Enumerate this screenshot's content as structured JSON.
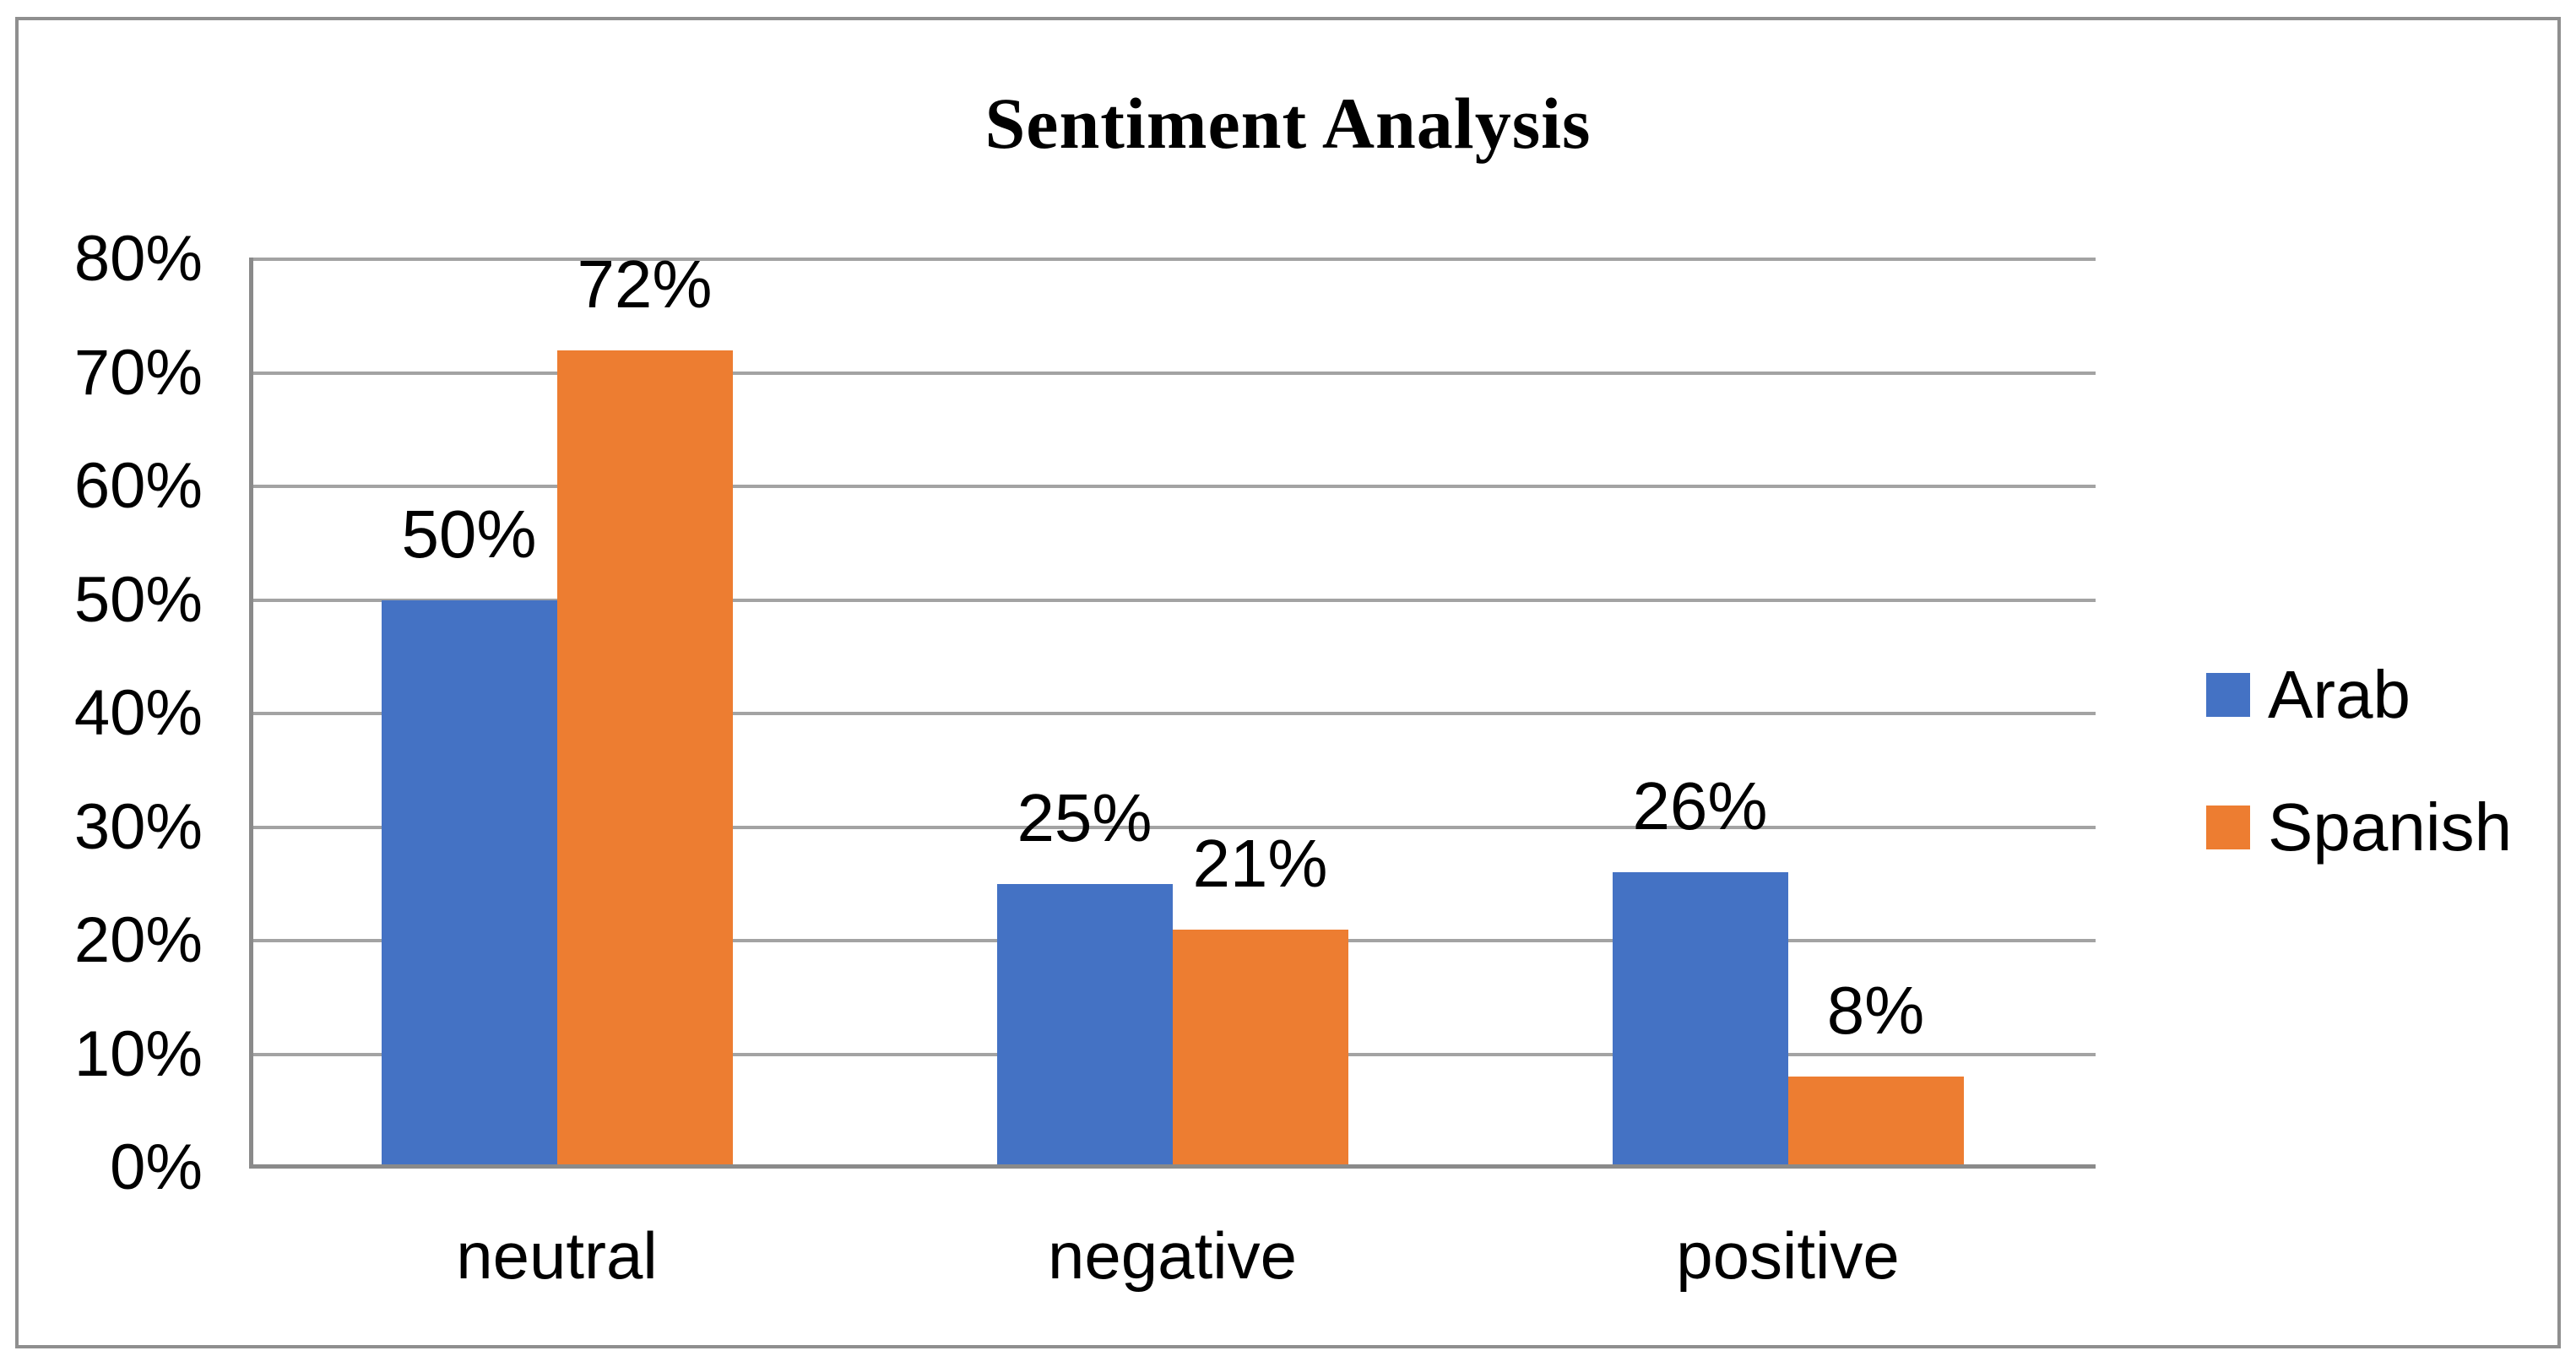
{
  "chart_data": {
    "type": "bar",
    "title": "Sentiment Analysis",
    "categories": [
      "neutral",
      "negative",
      "positive"
    ],
    "series": [
      {
        "name": "Arab",
        "color": "#4472C4",
        "values": [
          50,
          25,
          26
        ],
        "labels": [
          "50%",
          "25%",
          "26%"
        ]
      },
      {
        "name": "Spanish",
        "color": "#ED7D31",
        "values": [
          72,
          21,
          8
        ],
        "labels": [
          "72%",
          "21%",
          "8%"
        ]
      }
    ],
    "y_axis": {
      "min": 0,
      "max": 80,
      "tick_step": 10,
      "tick_labels": [
        "0%",
        "10%",
        "20%",
        "30%",
        "40%",
        "50%",
        "60%",
        "70%",
        "80%"
      ],
      "format": "percent"
    },
    "x_axis": {
      "tick_labels": [
        "neutral",
        "negative",
        "positive"
      ]
    },
    "legend": {
      "position": "right",
      "entries": [
        "Arab",
        "Spanish"
      ]
    },
    "grid": true,
    "bar_value_labels": "outside-end"
  },
  "palette": {
    "arab": "#4472C4",
    "spanish": "#ED7D31",
    "gridline": "#A3A3A3",
    "axis": "#8A8A8A",
    "frame_border": "#8F8F8F",
    "text": "#000000",
    "background": "#FFFFFF"
  }
}
